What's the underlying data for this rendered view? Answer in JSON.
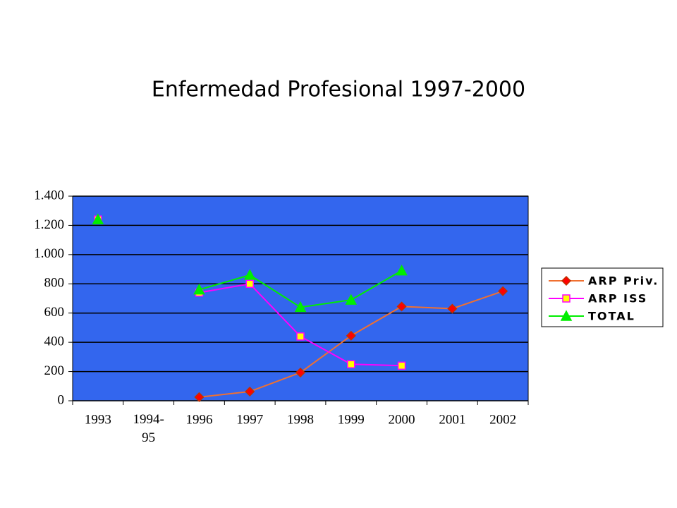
{
  "chart_data": {
    "type": "line",
    "title": "Enfermedad Profesional 1997-2000",
    "categories": [
      "1993",
      "1994-95",
      "1996",
      "1997",
      "1998",
      "1999",
      "2000",
      "2001",
      "2002"
    ],
    "series": [
      {
        "name": "ARP Priv.",
        "color": "#f07030",
        "marker": "diamond",
        "marker_fill": "#ff0000",
        "values": [
          null,
          null,
          25,
          63,
          193,
          445,
          645,
          630,
          750
        ]
      },
      {
        "name": "ARP ISS",
        "color": "#ff00ff",
        "marker": "square",
        "marker_fill": "#ffff00",
        "values": [
          1240,
          null,
          740,
          800,
          440,
          250,
          240,
          null,
          null
        ]
      },
      {
        "name": "TOTAL",
        "color": "#00ee00",
        "marker": "triangle",
        "marker_fill": "#00ee00",
        "values": [
          1240,
          null,
          760,
          860,
          640,
          690,
          890,
          null,
          null
        ]
      }
    ],
    "ylim": [
      0,
      1400
    ],
    "yticks": [
      0,
      200,
      400,
      600,
      800,
      {
        "value": 1000,
        "label": "1.000"
      },
      {
        "value": 1200,
        "label": "1.200"
      },
      {
        "value": 1400,
        "label": "1.400"
      }
    ],
    "grid": true,
    "plot_background": "#3366ee",
    "legend": "right"
  }
}
